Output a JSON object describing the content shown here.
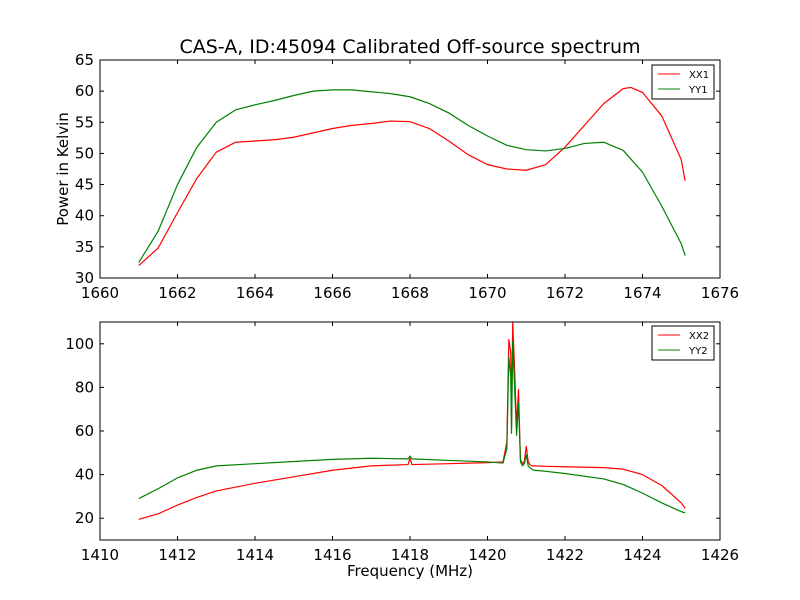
{
  "figure_title": "CAS-A, ID:45094 Calibrated Off-source spectrum",
  "chart_data": [
    {
      "type": "line",
      "title": "CAS-A, ID:45094 Calibrated Off-source spectrum",
      "xlabel": "",
      "ylabel": "Power in Kelvin",
      "xlim": [
        1660,
        1676
      ],
      "ylim": [
        30,
        65
      ],
      "xticks": [
        1660,
        1662,
        1664,
        1666,
        1668,
        1670,
        1672,
        1674,
        1676
      ],
      "yticks": [
        30,
        35,
        40,
        45,
        50,
        55,
        60,
        65
      ],
      "grid": false,
      "legend": "top-right",
      "series": [
        {
          "name": "XX1",
          "color": "#ff0000",
          "x": [
            1661.0,
            1661.5,
            1662.0,
            1662.5,
            1663.0,
            1663.5,
            1664.0,
            1664.5,
            1665.0,
            1665.5,
            1666.0,
            1666.5,
            1667.0,
            1667.5,
            1668.0,
            1668.5,
            1669.0,
            1669.5,
            1670.0,
            1670.5,
            1671.0,
            1671.5,
            1672.0,
            1672.5,
            1673.0,
            1673.5,
            1673.7,
            1674.0,
            1674.5,
            1675.0,
            1675.1
          ],
          "y": [
            32.0,
            34.8,
            40.5,
            46.0,
            50.2,
            51.8,
            52.0,
            52.2,
            52.6,
            53.3,
            54.0,
            54.5,
            54.8,
            55.2,
            55.1,
            54.0,
            52.0,
            49.8,
            48.2,
            47.5,
            47.3,
            48.2,
            51.0,
            54.5,
            58.0,
            60.4,
            60.6,
            59.8,
            56.0,
            49.0,
            45.6
          ]
        },
        {
          "name": "YY1",
          "color": "#008000",
          "x": [
            1661.0,
            1661.5,
            1662.0,
            1662.5,
            1663.0,
            1663.5,
            1664.0,
            1664.5,
            1665.0,
            1665.5,
            1666.0,
            1666.5,
            1667.0,
            1667.5,
            1668.0,
            1668.5,
            1669.0,
            1669.5,
            1670.0,
            1670.5,
            1671.0,
            1671.5,
            1672.0,
            1672.5,
            1673.0,
            1673.5,
            1674.0,
            1674.5,
            1675.0,
            1675.1
          ],
          "y": [
            32.5,
            37.5,
            45.0,
            51.0,
            55.0,
            57.0,
            57.8,
            58.5,
            59.3,
            60.0,
            60.2,
            60.2,
            59.9,
            59.6,
            59.1,
            58.0,
            56.5,
            54.5,
            52.8,
            51.3,
            50.6,
            50.4,
            50.8,
            51.6,
            51.8,
            50.5,
            47.0,
            41.5,
            35.5,
            33.6
          ]
        }
      ]
    },
    {
      "type": "line",
      "title": "",
      "xlabel": "Frequency (MHz)",
      "ylabel": "",
      "xlim": [
        1410,
        1426
      ],
      "ylim": [
        10,
        110
      ],
      "xticks": [
        1410,
        1412,
        1414,
        1416,
        1418,
        1420,
        1422,
        1424,
        1426
      ],
      "yticks": [
        20,
        40,
        60,
        80,
        100
      ],
      "grid": false,
      "legend": "top-right",
      "series": [
        {
          "name": "XX2",
          "color": "#ff0000",
          "x": [
            1411.0,
            1411.5,
            1412.0,
            1412.5,
            1413.0,
            1414.0,
            1415.0,
            1416.0,
            1417.0,
            1417.95,
            1418.0,
            1418.05,
            1419.0,
            1420.0,
            1420.4,
            1420.5,
            1420.55,
            1420.6,
            1420.62,
            1420.65,
            1420.7,
            1420.75,
            1420.8,
            1420.85,
            1420.9,
            1420.95,
            1421.0,
            1421.05,
            1421.1,
            1421.15,
            1421.2,
            1421.5,
            1422.0,
            1423.0,
            1423.5,
            1424.0,
            1424.5,
            1425.0,
            1425.1
          ],
          "y": [
            19.5,
            22.0,
            26.0,
            29.5,
            32.5,
            36.0,
            39.0,
            42.0,
            44.0,
            44.6,
            47.5,
            44.6,
            45.0,
            45.5,
            45.8,
            55.0,
            102.0,
            96.0,
            62.0,
            110.0,
            88.0,
            62.0,
            79.0,
            47.0,
            45.0,
            46.0,
            53.0,
            46.0,
            44.5,
            44.0,
            44.0,
            43.8,
            43.6,
            43.2,
            42.5,
            40.0,
            35.0,
            27.0,
            24.5
          ]
        },
        {
          "name": "YY2",
          "color": "#008000",
          "x": [
            1411.0,
            1411.5,
            1412.0,
            1412.5,
            1413.0,
            1414.0,
            1415.0,
            1416.0,
            1417.0,
            1417.95,
            1418.0,
            1418.05,
            1419.0,
            1420.0,
            1420.4,
            1420.5,
            1420.55,
            1420.6,
            1420.62,
            1420.65,
            1420.7,
            1420.75,
            1420.8,
            1420.85,
            1420.9,
            1420.95,
            1421.0,
            1421.05,
            1421.1,
            1421.15,
            1421.2,
            1421.5,
            1422.0,
            1423.0,
            1423.5,
            1424.0,
            1424.5,
            1425.0,
            1425.1
          ],
          "y": [
            29.0,
            33.5,
            38.5,
            42.0,
            44.0,
            45.0,
            46.0,
            47.0,
            47.5,
            47.2,
            48.5,
            47.2,
            46.5,
            45.8,
            45.3,
            52.0,
            94.0,
            85.0,
            59.0,
            101.0,
            80.0,
            58.0,
            73.0,
            46.0,
            44.0,
            45.0,
            49.0,
            44.0,
            43.0,
            42.5,
            42.0,
            41.5,
            40.5,
            38.0,
            35.5,
            31.5,
            27.0,
            23.0,
            22.5
          ]
        }
      ]
    }
  ]
}
